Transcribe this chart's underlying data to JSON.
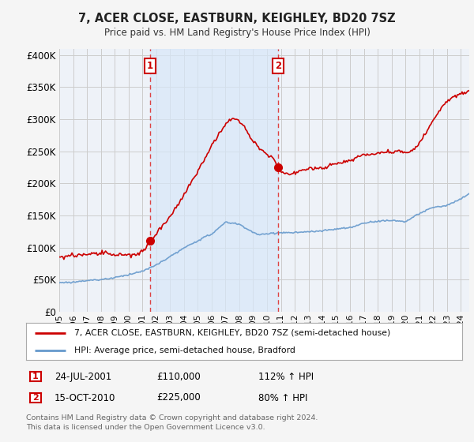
{
  "title": "7, ACER CLOSE, EASTBURN, KEIGHLEY, BD20 7SZ",
  "subtitle": "Price paid vs. HM Land Registry's House Price Index (HPI)",
  "legend_line1": "7, ACER CLOSE, EASTBURN, KEIGHLEY, BD20 7SZ (semi-detached house)",
  "legend_line2": "HPI: Average price, semi-detached house, Bradford",
  "footer": "Contains HM Land Registry data © Crown copyright and database right 2024.\nThis data is licensed under the Open Government Licence v3.0.",
  "sale1_date": "24-JUL-2001",
  "sale1_price": "£110,000",
  "sale1_hpi": "112% ↑ HPI",
  "sale2_date": "15-OCT-2010",
  "sale2_price": "£225,000",
  "sale2_hpi": "80% ↑ HPI",
  "sale1_year": 2001.55,
  "sale1_value": 110000,
  "sale2_year": 2010.79,
  "sale2_value": 225000,
  "red_color": "#CC0000",
  "blue_color": "#6699CC",
  "dashed_color": "#DD4444",
  "shade_color": "#DDEEFF",
  "background_color": "#F5F5F5",
  "plot_bg_color": "#F0F4F8",
  "grid_color": "#CCCCCC",
  "ylim": [
    0,
    410000
  ],
  "yticks": [
    0,
    50000,
    100000,
    150000,
    200000,
    250000,
    300000,
    350000,
    400000
  ]
}
